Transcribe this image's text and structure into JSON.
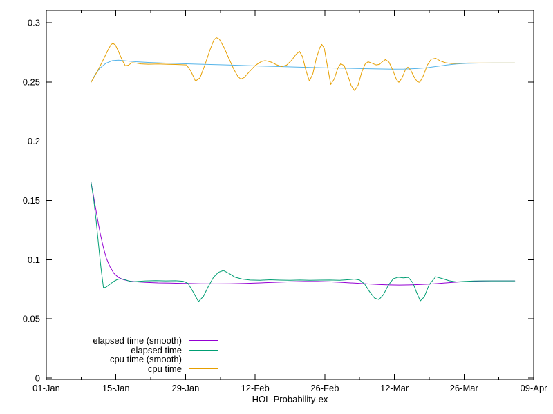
{
  "figure": {
    "background": "#ffffff",
    "axis_color": "#000000",
    "text_color": "#000000"
  },
  "chart_data": {
    "type": "line",
    "title": "",
    "xlabel": "HOL-Probability-ex",
    "ylabel": "",
    "x_unit": "days since 01-Jan",
    "xlim": [
      0,
      98
    ],
    "ylim": [
      0,
      0.3
    ],
    "grid": false,
    "legend_position": "inside-bottom-left",
    "x_ticks": [
      {
        "day": 0,
        "label": "01-Jan"
      },
      {
        "day": 14,
        "label": "15-Jan"
      },
      {
        "day": 28,
        "label": "29-Jan"
      },
      {
        "day": 42,
        "label": "12-Feb"
      },
      {
        "day": 56,
        "label": "26-Feb"
      },
      {
        "day": 70,
        "label": "12-Mar"
      },
      {
        "day": 84,
        "label": "26-Mar"
      },
      {
        "day": 98,
        "label": "09-Apr"
      }
    ],
    "x_minor_tick_interval": 7,
    "y_ticks": [
      {
        "value": 0,
        "label": "0"
      },
      {
        "value": 0.05,
        "label": "0.05"
      },
      {
        "value": 0.1,
        "label": "0.1"
      },
      {
        "value": 0.15,
        "label": "0.15"
      },
      {
        "value": 0.2,
        "label": "0.2"
      },
      {
        "value": 0.25,
        "label": "0.25"
      },
      {
        "value": 0.3,
        "label": "0.3"
      }
    ],
    "series": [
      {
        "name": "elapsed time (smooth)",
        "color": "#9400d3",
        "points": [
          [
            9.0,
            0.1653
          ],
          [
            9.4,
            0.156
          ],
          [
            9.9,
            0.144
          ],
          [
            10.4,
            0.132
          ],
          [
            10.9,
            0.121
          ],
          [
            11.5,
            0.11
          ],
          [
            12.1,
            0.101
          ],
          [
            12.8,
            0.094
          ],
          [
            13.6,
            0.0885
          ],
          [
            14.5,
            0.085
          ],
          [
            15.5,
            0.0831
          ],
          [
            16.6,
            0.082
          ],
          [
            18.0,
            0.0813
          ],
          [
            20.0,
            0.0808
          ],
          [
            22.5,
            0.0804
          ],
          [
            25.0,
            0.0802
          ],
          [
            28.0,
            0.0799
          ],
          [
            31.0,
            0.0797
          ],
          [
            34.0,
            0.0796
          ],
          [
            37.0,
            0.0797
          ],
          [
            40.0,
            0.08
          ],
          [
            43.0,
            0.0804
          ],
          [
            46.0,
            0.0809
          ],
          [
            49.0,
            0.0813
          ],
          [
            52.0,
            0.0816
          ],
          [
            54.5,
            0.0816
          ],
          [
            57.0,
            0.0813
          ],
          [
            59.5,
            0.0808
          ],
          [
            62.0,
            0.0802
          ],
          [
            64.5,
            0.0796
          ],
          [
            67.0,
            0.079
          ],
          [
            69.0,
            0.0787
          ],
          [
            71.0,
            0.0786
          ],
          [
            73.0,
            0.0787
          ],
          [
            75.0,
            0.079
          ],
          [
            77.0,
            0.0794
          ],
          [
            79.0,
            0.08
          ],
          [
            81.0,
            0.0806
          ],
          [
            83.0,
            0.0812
          ],
          [
            85.0,
            0.0816
          ],
          [
            87.0,
            0.0819
          ],
          [
            89.5,
            0.0821
          ],
          [
            92.0,
            0.0821
          ],
          [
            94.2,
            0.0821
          ]
        ]
      },
      {
        "name": "elapsed time",
        "color": "#009e73",
        "points": [
          [
            9.0,
            0.1653
          ],
          [
            9.5,
            0.152
          ],
          [
            10.0,
            0.134
          ],
          [
            10.5,
            0.113
          ],
          [
            11.0,
            0.093
          ],
          [
            11.5,
            0.0762
          ],
          [
            12.0,
            0.0768
          ],
          [
            12.7,
            0.079
          ],
          [
            13.5,
            0.0815
          ],
          [
            14.3,
            0.0833
          ],
          [
            15.0,
            0.0838
          ],
          [
            15.8,
            0.0831
          ],
          [
            16.6,
            0.082
          ],
          [
            17.5,
            0.0813
          ],
          [
            18.5,
            0.0817
          ],
          [
            20.0,
            0.0821
          ],
          [
            22.0,
            0.0823
          ],
          [
            24.0,
            0.0821
          ],
          [
            26.0,
            0.0822
          ],
          [
            27.5,
            0.0818
          ],
          [
            28.5,
            0.08
          ],
          [
            29.5,
            0.073
          ],
          [
            30.6,
            0.0646
          ],
          [
            31.6,
            0.069
          ],
          [
            32.6,
            0.0775
          ],
          [
            33.6,
            0.085
          ],
          [
            34.6,
            0.0893
          ],
          [
            35.6,
            0.0908
          ],
          [
            36.7,
            0.0885
          ],
          [
            37.9,
            0.0853
          ],
          [
            39.4,
            0.0836
          ],
          [
            41.0,
            0.0828
          ],
          [
            43.0,
            0.0826
          ],
          [
            45.0,
            0.083
          ],
          [
            47.0,
            0.0827
          ],
          [
            49.0,
            0.0826
          ],
          [
            51.0,
            0.0828
          ],
          [
            53.0,
            0.0826
          ],
          [
            55.0,
            0.0827
          ],
          [
            57.0,
            0.0828
          ],
          [
            59.0,
            0.0826
          ],
          [
            61.0,
            0.0831
          ],
          [
            62.0,
            0.0836
          ],
          [
            63.0,
            0.0828
          ],
          [
            64.0,
            0.0795
          ],
          [
            65.0,
            0.073
          ],
          [
            66.0,
            0.0676
          ],
          [
            66.9,
            0.0663
          ],
          [
            67.8,
            0.0705
          ],
          [
            68.8,
            0.0785
          ],
          [
            69.8,
            0.084
          ],
          [
            70.8,
            0.0851
          ],
          [
            71.8,
            0.0846
          ],
          [
            72.8,
            0.085
          ],
          [
            73.7,
            0.0805
          ],
          [
            74.5,
            0.072
          ],
          [
            75.2,
            0.0652
          ],
          [
            76.0,
            0.0685
          ],
          [
            77.0,
            0.079
          ],
          [
            78.3,
            0.0855
          ],
          [
            79.5,
            0.0842
          ],
          [
            81.0,
            0.0822
          ],
          [
            82.5,
            0.0812
          ],
          [
            84.0,
            0.0816
          ],
          [
            86.0,
            0.082
          ],
          [
            88.0,
            0.0821
          ],
          [
            91.0,
            0.0821
          ],
          [
            94.2,
            0.0821
          ]
        ]
      },
      {
        "name": "cpu time (smooth)",
        "color": "#56b4e9",
        "points": [
          [
            9.0,
            0.2497
          ],
          [
            9.8,
            0.2562
          ],
          [
            10.8,
            0.2618
          ],
          [
            12.0,
            0.2658
          ],
          [
            13.3,
            0.268
          ],
          [
            14.5,
            0.2684
          ],
          [
            16.0,
            0.2678
          ],
          [
            18.0,
            0.2671
          ],
          [
            20.5,
            0.2665
          ],
          [
            23.5,
            0.266
          ],
          [
            27.0,
            0.2655
          ],
          [
            31.0,
            0.265
          ],
          [
            35.0,
            0.2645
          ],
          [
            39.0,
            0.264
          ],
          [
            43.0,
            0.2635
          ],
          [
            47.0,
            0.263
          ],
          [
            51.0,
            0.2625
          ],
          [
            55.0,
            0.2621
          ],
          [
            59.0,
            0.2617
          ],
          [
            63.0,
            0.2613
          ],
          [
            66.5,
            0.261
          ],
          [
            69.5,
            0.2608
          ],
          [
            72.0,
            0.2609
          ],
          [
            74.5,
            0.2613
          ],
          [
            76.5,
            0.262
          ],
          [
            78.5,
            0.2631
          ],
          [
            80.5,
            0.2643
          ],
          [
            82.5,
            0.2652
          ],
          [
            84.5,
            0.2657
          ],
          [
            87.0,
            0.2659
          ],
          [
            90.0,
            0.266
          ],
          [
            94.2,
            0.266
          ]
        ]
      },
      {
        "name": "cpu time",
        "color": "#e69f00",
        "points": [
          [
            9.0,
            0.2497
          ],
          [
            9.8,
            0.2555
          ],
          [
            10.7,
            0.2625
          ],
          [
            11.6,
            0.27
          ],
          [
            12.4,
            0.277
          ],
          [
            13.0,
            0.2815
          ],
          [
            13.4,
            0.2826
          ],
          [
            13.9,
            0.2812
          ],
          [
            14.6,
            0.275
          ],
          [
            15.3,
            0.268
          ],
          [
            15.9,
            0.2636
          ],
          [
            16.5,
            0.2642
          ],
          [
            17.2,
            0.2662
          ],
          [
            18.0,
            0.266
          ],
          [
            19.0,
            0.2653
          ],
          [
            20.5,
            0.265
          ],
          [
            22.5,
            0.2652
          ],
          [
            24.5,
            0.2649
          ],
          [
            26.5,
            0.2647
          ],
          [
            28.2,
            0.2644
          ],
          [
            29.1,
            0.259
          ],
          [
            30.0,
            0.2508
          ],
          [
            30.9,
            0.2535
          ],
          [
            31.9,
            0.2645
          ],
          [
            32.9,
            0.277
          ],
          [
            33.7,
            0.2855
          ],
          [
            34.2,
            0.2874
          ],
          [
            34.8,
            0.2862
          ],
          [
            35.7,
            0.2795
          ],
          [
            36.7,
            0.27
          ],
          [
            37.7,
            0.2608
          ],
          [
            38.5,
            0.2548
          ],
          [
            39.1,
            0.2524
          ],
          [
            39.8,
            0.2538
          ],
          [
            40.8,
            0.2585
          ],
          [
            42.0,
            0.2638
          ],
          [
            43.2,
            0.2672
          ],
          [
            44.0,
            0.2681
          ],
          [
            45.2,
            0.2668
          ],
          [
            46.3,
            0.2645
          ],
          [
            47.3,
            0.263
          ],
          [
            48.3,
            0.2642
          ],
          [
            49.3,
            0.2682
          ],
          [
            50.2,
            0.2732
          ],
          [
            50.9,
            0.2758
          ],
          [
            51.5,
            0.2715
          ],
          [
            52.2,
            0.26
          ],
          [
            52.9,
            0.2508
          ],
          [
            53.6,
            0.257
          ],
          [
            54.3,
            0.27
          ],
          [
            55.0,
            0.279
          ],
          [
            55.4,
            0.2817
          ],
          [
            55.9,
            0.2785
          ],
          [
            56.5,
            0.264
          ],
          [
            57.2,
            0.2479
          ],
          [
            57.9,
            0.2525
          ],
          [
            58.6,
            0.2615
          ],
          [
            59.2,
            0.2654
          ],
          [
            59.9,
            0.2638
          ],
          [
            60.6,
            0.256
          ],
          [
            61.3,
            0.247
          ],
          [
            62.0,
            0.2427
          ],
          [
            62.7,
            0.2475
          ],
          [
            63.4,
            0.258
          ],
          [
            64.1,
            0.265
          ],
          [
            64.7,
            0.2671
          ],
          [
            65.5,
            0.2658
          ],
          [
            66.3,
            0.2644
          ],
          [
            67.0,
            0.2648
          ],
          [
            67.6,
            0.2672
          ],
          [
            68.2,
            0.2689
          ],
          [
            68.9,
            0.2668
          ],
          [
            69.7,
            0.2598
          ],
          [
            70.4,
            0.2522
          ],
          [
            70.9,
            0.2497
          ],
          [
            71.5,
            0.2532
          ],
          [
            72.2,
            0.2602
          ],
          [
            72.7,
            0.2625
          ],
          [
            73.3,
            0.2598
          ],
          [
            74.0,
            0.254
          ],
          [
            74.6,
            0.2502
          ],
          [
            75.1,
            0.2497
          ],
          [
            75.8,
            0.2552
          ],
          [
            76.6,
            0.2642
          ],
          [
            77.4,
            0.2692
          ],
          [
            78.3,
            0.27
          ],
          [
            79.2,
            0.2678
          ],
          [
            80.3,
            0.2662
          ],
          [
            81.5,
            0.2656
          ],
          [
            83.0,
            0.2658
          ],
          [
            85.0,
            0.266
          ],
          [
            88.0,
            0.266
          ],
          [
            91.0,
            0.266
          ],
          [
            94.2,
            0.266
          ]
        ]
      }
    ]
  }
}
